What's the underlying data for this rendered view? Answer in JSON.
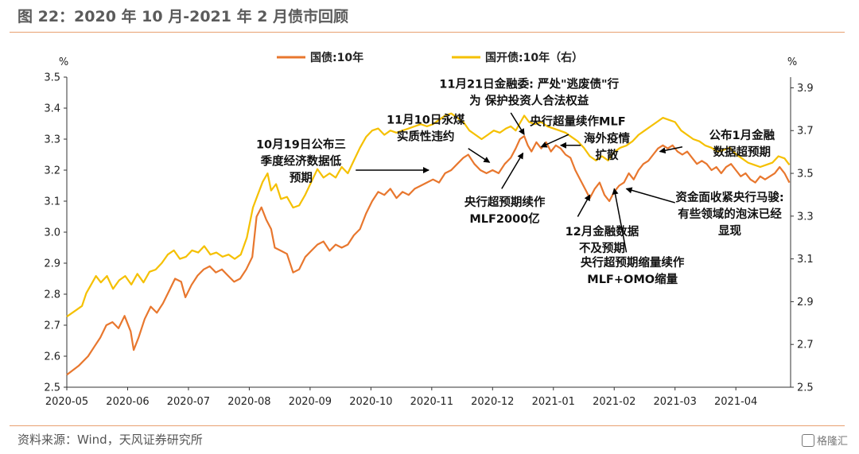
{
  "figure": {
    "title": "图 22：2020 年 10 月-2021 年 2 月债市回顾",
    "source": "资料来源：Wind，天风证券研究所",
    "watermark": "格隆汇"
  },
  "chart_data": {
    "type": "line",
    "left_unit": "%",
    "right_unit": "%",
    "x_ticks": [
      "2020-05",
      "2020-06",
      "2020-07",
      "2020-08",
      "2020-09",
      "2020-10",
      "2020-11",
      "2020-12",
      "2021-01",
      "2021-02",
      "2021-03",
      "2021-04"
    ],
    "x_range": [
      0,
      11.9
    ],
    "ylim_left": [
      2.5,
      3.5
    ],
    "yticks_left": [
      "2.5",
      "2.6",
      "2.7",
      "2.8",
      "2.9",
      "3.0",
      "3.1",
      "3.2",
      "3.3",
      "3.4",
      "3.5"
    ],
    "ylim_right": [
      2.5,
      3.95
    ],
    "yticks_right": [
      "2.5",
      "2.7",
      "2.9",
      "3.1",
      "3.3",
      "3.5",
      "3.7",
      "3.9"
    ],
    "grid": false,
    "legend_position": "top",
    "series": [
      {
        "name": "国债:10年",
        "axis": "left",
        "color": "#E8772E",
        "points": [
          [
            0.0,
            2.54
          ],
          [
            0.2,
            2.57
          ],
          [
            0.35,
            2.6
          ],
          [
            0.45,
            2.63
          ],
          [
            0.55,
            2.66
          ],
          [
            0.65,
            2.7
          ],
          [
            0.75,
            2.71
          ],
          [
            0.85,
            2.69
          ],
          [
            0.95,
            2.73
          ],
          [
            1.05,
            2.68
          ],
          [
            1.1,
            2.62
          ],
          [
            1.18,
            2.66
          ],
          [
            1.28,
            2.72
          ],
          [
            1.38,
            2.76
          ],
          [
            1.48,
            2.74
          ],
          [
            1.58,
            2.77
          ],
          [
            1.68,
            2.81
          ],
          [
            1.78,
            2.85
          ],
          [
            1.88,
            2.84
          ],
          [
            1.95,
            2.79
          ],
          [
            2.05,
            2.83
          ],
          [
            2.15,
            2.86
          ],
          [
            2.25,
            2.88
          ],
          [
            2.35,
            2.89
          ],
          [
            2.45,
            2.87
          ],
          [
            2.55,
            2.88
          ],
          [
            2.65,
            2.86
          ],
          [
            2.75,
            2.84
          ],
          [
            2.85,
            2.85
          ],
          [
            2.95,
            2.88
          ],
          [
            3.05,
            2.92
          ],
          [
            3.12,
            3.05
          ],
          [
            3.2,
            3.08
          ],
          [
            3.28,
            3.04
          ],
          [
            3.36,
            3.01
          ],
          [
            3.42,
            2.95
          ],
          [
            3.52,
            2.94
          ],
          [
            3.62,
            2.93
          ],
          [
            3.72,
            2.87
          ],
          [
            3.82,
            2.88
          ],
          [
            3.92,
            2.92
          ],
          [
            4.02,
            2.94
          ],
          [
            4.12,
            2.96
          ],
          [
            4.22,
            2.97
          ],
          [
            4.32,
            2.94
          ],
          [
            4.42,
            2.96
          ],
          [
            4.52,
            2.95
          ],
          [
            4.62,
            2.96
          ],
          [
            4.72,
            2.99
          ],
          [
            4.82,
            3.01
          ],
          [
            4.92,
            3.06
          ],
          [
            5.02,
            3.1
          ],
          [
            5.12,
            3.13
          ],
          [
            5.22,
            3.12
          ],
          [
            5.32,
            3.14
          ],
          [
            5.42,
            3.11
          ],
          [
            5.52,
            3.13
          ],
          [
            5.62,
            3.12
          ],
          [
            5.72,
            3.14
          ],
          [
            5.82,
            3.15
          ],
          [
            5.92,
            3.16
          ],
          [
            6.02,
            3.17
          ],
          [
            6.12,
            3.16
          ],
          [
            6.22,
            3.19
          ],
          [
            6.32,
            3.2
          ],
          [
            6.42,
            3.22
          ],
          [
            6.52,
            3.24
          ],
          [
            6.6,
            3.25
          ],
          [
            6.7,
            3.22
          ],
          [
            6.8,
            3.2
          ],
          [
            6.9,
            3.19
          ],
          [
            7.0,
            3.2
          ],
          [
            7.1,
            3.19
          ],
          [
            7.2,
            3.22
          ],
          [
            7.3,
            3.24
          ],
          [
            7.38,
            3.27
          ],
          [
            7.45,
            3.3
          ],
          [
            7.52,
            3.31
          ],
          [
            7.58,
            3.28
          ],
          [
            7.64,
            3.26
          ],
          [
            7.72,
            3.29
          ],
          [
            7.8,
            3.27
          ],
          [
            7.88,
            3.29
          ],
          [
            7.96,
            3.26
          ],
          [
            8.04,
            3.28
          ],
          [
            8.12,
            3.27
          ],
          [
            8.2,
            3.25
          ],
          [
            8.28,
            3.24
          ],
          [
            8.36,
            3.2
          ],
          [
            8.44,
            3.17
          ],
          [
            8.52,
            3.14
          ],
          [
            8.6,
            3.11
          ],
          [
            8.68,
            3.14
          ],
          [
            8.76,
            3.16
          ],
          [
            8.84,
            3.12
          ],
          [
            8.92,
            3.1
          ],
          [
            9.0,
            3.13
          ],
          [
            9.08,
            3.15
          ],
          [
            9.16,
            3.16
          ],
          [
            9.24,
            3.19
          ],
          [
            9.32,
            3.17
          ],
          [
            9.4,
            3.2
          ],
          [
            9.48,
            3.22
          ],
          [
            9.56,
            3.23
          ],
          [
            9.64,
            3.25
          ],
          [
            9.72,
            3.27
          ],
          [
            9.8,
            3.28
          ],
          [
            9.88,
            3.27
          ],
          [
            9.96,
            3.28
          ],
          [
            10.04,
            3.26
          ],
          [
            10.12,
            3.25
          ],
          [
            10.2,
            3.26
          ],
          [
            10.28,
            3.24
          ],
          [
            10.36,
            3.22
          ],
          [
            10.44,
            3.23
          ],
          [
            10.52,
            3.22
          ],
          [
            10.6,
            3.2
          ],
          [
            10.68,
            3.21
          ],
          [
            10.76,
            3.19
          ],
          [
            10.84,
            3.21
          ],
          [
            10.92,
            3.22
          ],
          [
            11.0,
            3.2
          ],
          [
            11.08,
            3.18
          ],
          [
            11.16,
            3.19
          ],
          [
            11.24,
            3.17
          ],
          [
            11.32,
            3.16
          ],
          [
            11.4,
            3.18
          ],
          [
            11.48,
            3.17
          ],
          [
            11.56,
            3.18
          ],
          [
            11.64,
            3.19
          ],
          [
            11.72,
            3.21
          ],
          [
            11.8,
            3.19
          ],
          [
            11.88,
            3.16
          ]
        ]
      },
      {
        "name": "国开债:10年（右）",
        "axis": "right",
        "color": "#F5C000",
        "points": [
          [
            0.0,
            2.83
          ],
          [
            0.15,
            2.86
          ],
          [
            0.25,
            2.88
          ],
          [
            0.32,
            2.94
          ],
          [
            0.4,
            2.98
          ],
          [
            0.48,
            3.02
          ],
          [
            0.56,
            2.99
          ],
          [
            0.66,
            3.02
          ],
          [
            0.76,
            2.96
          ],
          [
            0.86,
            3.0
          ],
          [
            0.96,
            3.02
          ],
          [
            1.06,
            2.98
          ],
          [
            1.16,
            3.03
          ],
          [
            1.26,
            2.99
          ],
          [
            1.36,
            3.04
          ],
          [
            1.46,
            3.05
          ],
          [
            1.56,
            3.08
          ],
          [
            1.66,
            3.12
          ],
          [
            1.76,
            3.14
          ],
          [
            1.86,
            3.1
          ],
          [
            1.96,
            3.11
          ],
          [
            2.06,
            3.14
          ],
          [
            2.16,
            3.13
          ],
          [
            2.26,
            3.16
          ],
          [
            2.36,
            3.12
          ],
          [
            2.46,
            3.13
          ],
          [
            2.56,
            3.11
          ],
          [
            2.66,
            3.12
          ],
          [
            2.76,
            3.1
          ],
          [
            2.86,
            3.12
          ],
          [
            2.96,
            3.2
          ],
          [
            3.06,
            3.34
          ],
          [
            3.14,
            3.4
          ],
          [
            3.22,
            3.46
          ],
          [
            3.3,
            3.5
          ],
          [
            3.36,
            3.42
          ],
          [
            3.44,
            3.45
          ],
          [
            3.52,
            3.38
          ],
          [
            3.62,
            3.39
          ],
          [
            3.72,
            3.34
          ],
          [
            3.82,
            3.35
          ],
          [
            3.92,
            3.4
          ],
          [
            4.02,
            3.46
          ],
          [
            4.12,
            3.52
          ],
          [
            4.22,
            3.48
          ],
          [
            4.32,
            3.5
          ],
          [
            4.42,
            3.48
          ],
          [
            4.52,
            3.53
          ],
          [
            4.62,
            3.5
          ],
          [
            4.72,
            3.56
          ],
          [
            4.82,
            3.62
          ],
          [
            4.92,
            3.67
          ],
          [
            5.02,
            3.7
          ],
          [
            5.12,
            3.71
          ],
          [
            5.22,
            3.68
          ],
          [
            5.32,
            3.7
          ],
          [
            5.42,
            3.69
          ],
          [
            5.52,
            3.7
          ],
          [
            5.62,
            3.71
          ],
          [
            5.72,
            3.72
          ],
          [
            5.82,
            3.73
          ],
          [
            5.92,
            3.72
          ],
          [
            6.02,
            3.73
          ],
          [
            6.12,
            3.75
          ],
          [
            6.22,
            3.77
          ],
          [
            6.32,
            3.78
          ],
          [
            6.42,
            3.76
          ],
          [
            6.52,
            3.74
          ],
          [
            6.62,
            3.7
          ],
          [
            6.72,
            3.68
          ],
          [
            6.82,
            3.66
          ],
          [
            6.92,
            3.68
          ],
          [
            7.02,
            3.7
          ],
          [
            7.12,
            3.69
          ],
          [
            7.22,
            3.71
          ],
          [
            7.3,
            3.72
          ],
          [
            7.38,
            3.7
          ],
          [
            7.46,
            3.74
          ],
          [
            7.52,
            3.77
          ],
          [
            7.6,
            3.74
          ],
          [
            7.7,
            3.73
          ],
          [
            7.8,
            3.74
          ],
          [
            7.9,
            3.72
          ],
          [
            8.0,
            3.71
          ],
          [
            8.1,
            3.7
          ],
          [
            8.2,
            3.69
          ],
          [
            8.3,
            3.67
          ],
          [
            8.4,
            3.65
          ],
          [
            8.5,
            3.62
          ],
          [
            8.6,
            3.58
          ],
          [
            8.7,
            3.56
          ],
          [
            8.8,
            3.58
          ],
          [
            8.9,
            3.56
          ],
          [
            9.0,
            3.6
          ],
          [
            9.1,
            3.62
          ],
          [
            9.2,
            3.63
          ],
          [
            9.3,
            3.65
          ],
          [
            9.4,
            3.68
          ],
          [
            9.5,
            3.7
          ],
          [
            9.6,
            3.72
          ],
          [
            9.7,
            3.74
          ],
          [
            9.8,
            3.76
          ],
          [
            9.9,
            3.75
          ],
          [
            10.0,
            3.74
          ],
          [
            10.1,
            3.7
          ],
          [
            10.2,
            3.68
          ],
          [
            10.3,
            3.66
          ],
          [
            10.4,
            3.65
          ],
          [
            10.5,
            3.63
          ],
          [
            10.6,
            3.62
          ],
          [
            10.7,
            3.6
          ],
          [
            10.8,
            3.61
          ],
          [
            10.9,
            3.62
          ],
          [
            11.0,
            3.59
          ],
          [
            11.1,
            3.57
          ],
          [
            11.2,
            3.55
          ],
          [
            11.3,
            3.54
          ],
          [
            11.4,
            3.53
          ],
          [
            11.5,
            3.54
          ],
          [
            11.6,
            3.55
          ],
          [
            11.7,
            3.58
          ],
          [
            11.8,
            3.57
          ],
          [
            11.88,
            3.54
          ]
        ]
      }
    ],
    "annotations": [
      {
        "lines": [
          "11月21日金融委: 严处\"逃废债\"行",
          "为 保护投资人合法权益"
        ],
        "x": 7.6,
        "y": 3.465,
        "anchor": "middle",
        "arrow_from": [
          7.3,
          3.385
        ],
        "arrow_to": [
          7.52,
          3.315
        ]
      },
      {
        "lines": [
          "11月10日永煤",
          "实质性违约"
        ],
        "x": 5.9,
        "y": 3.35,
        "anchor": "middle",
        "arrow_from": [
          6.6,
          3.27
        ],
        "arrow_to": [
          6.95,
          3.225
        ]
      },
      {
        "lines": [
          "10月19日公布三",
          "季度经济数据低",
          "预期"
        ],
        "x": 3.85,
        "y": 3.27,
        "anchor": "middle",
        "arrow_from": [
          4.75,
          3.2
        ],
        "arrow_to": [
          5.95,
          3.2
        ]
      },
      {
        "lines": [
          "央行超预期续作",
          "MLF2000亿"
        ],
        "x": 7.2,
        "y": 3.085,
        "anchor": "middle",
        "arrow_from": [
          7.15,
          3.14
        ],
        "arrow_to": [
          7.5,
          3.255
        ]
      },
      {
        "lines": [
          "央行超量续作MLF"
        ],
        "x": 8.4,
        "y": 3.345,
        "anchor": "middle",
        "arrow_from": [
          8.25,
          3.315
        ],
        "arrow_to": [
          7.8,
          3.275
        ]
      },
      {
        "lines": [
          "海外疫情",
          "扩散"
        ],
        "x": 8.88,
        "y": 3.29,
        "anchor": "middle",
        "arrow_from": [
          8.45,
          3.28
        ],
        "arrow_to": [
          8.12,
          3.28
        ]
      },
      {
        "lines": [
          "12月金融数据",
          "不及预期"
        ],
        "x": 8.8,
        "y": 2.99,
        "anchor": "middle",
        "arrow_from": [
          8.4,
          3.05
        ],
        "arrow_to": [
          8.6,
          3.12
        ]
      },
      {
        "lines": [
          "央行超预期缩量续作",
          "MLF+OMO缩量"
        ],
        "x": 9.3,
        "y": 2.89,
        "anchor": "middle",
        "arrow_from": [
          9.2,
          2.935
        ],
        "arrow_to": [
          9.0,
          3.14
        ]
      },
      {
        "lines": [
          "资金面收紧央行马骏:",
          "有些领域的泡沫已经",
          "显现"
        ],
        "x": 10.9,
        "y": 3.1,
        "anchor": "middle",
        "arrow_from": [
          10.0,
          3.095
        ],
        "arrow_to": [
          9.2,
          3.14
        ]
      },
      {
        "lines": [
          "公布1月金融",
          "数据超预期"
        ],
        "x": 11.1,
        "y": 3.3,
        "anchor": "middle",
        "arrow_from": [
          10.12,
          3.275
        ],
        "arrow_to": [
          9.75,
          3.26
        ]
      }
    ]
  }
}
